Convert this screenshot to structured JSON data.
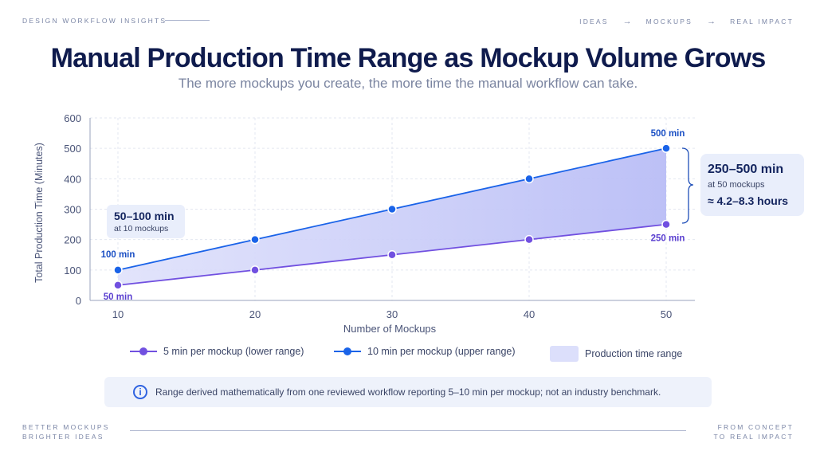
{
  "header": {
    "brand": "DESIGN WORKFLOW INSIGHTS",
    "nav": [
      "IDEAS",
      "MOCKUPS",
      "REAL IMPACT"
    ],
    "nav_arrow": "→"
  },
  "title": "Manual Production Time Range as Mockup Volume Grows",
  "subtitle": "The more mockups you create, the more time the manual workflow can take.",
  "chart_data": {
    "type": "line",
    "x": [
      10,
      20,
      30,
      40,
      50
    ],
    "xlabel": "Number of Mockups",
    "ylabel": "Total Production Time (Minutes)",
    "xlim": [
      10,
      50
    ],
    "ylim": [
      0,
      600
    ],
    "yticks": [
      0,
      100,
      200,
      300,
      400,
      500,
      600
    ],
    "xticks": [
      10,
      20,
      30,
      40,
      50
    ],
    "grid": true,
    "legend_position": "bottom",
    "series": [
      {
        "name": "5 min per mockup (lower range)",
        "values": [
          50,
          100,
          150,
          200,
          250
        ],
        "color": "#7150e0"
      },
      {
        "name": "10 min per mockup (upper range)",
        "values": [
          100,
          200,
          300,
          400,
          500
        ],
        "color": "#1a63e8"
      }
    ],
    "band": {
      "name": "Production time range",
      "color": "#c9ccf7"
    },
    "point_labels": {
      "upper_first": "100 min",
      "lower_first": "50 min",
      "upper_last": "500 min",
      "lower_last": "250 min"
    },
    "annotations": {
      "left": {
        "range": "50–100 min",
        "detail": "at 10 mockups"
      },
      "right": {
        "range": "250–500 min",
        "detail": "at 50 mockups",
        "hours": "≈ 4.2–8.3 hours"
      }
    }
  },
  "note": {
    "icon": "info-icon",
    "text": "Range derived mathematically from one reviewed workflow reporting 5–10 min per mockup; not an industry benchmark."
  },
  "footer": {
    "left_line1": "BETTER MOCKUPS",
    "left_line2": "BRIGHTER IDEAS",
    "right_line1": "FROM CONCEPT",
    "right_line2": "TO REAL IMPACT"
  }
}
